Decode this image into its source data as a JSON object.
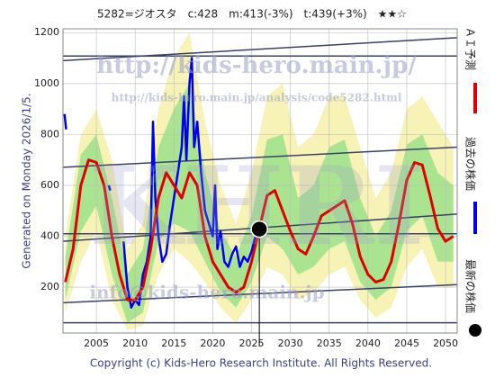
{
  "chart_data": {
    "type": "line",
    "title": "5282=ジオスタ　c:428　m:413(-3%)　t:439(+3%)　★★☆",
    "side_note": "Generated on Monday 2026/1/5.",
    "footer": "Copyright (c) Kids-Hero Research Institute. All Rights Reserved.",
    "watermarks": [
      "http://kids-hero.main.jp/",
      "http://kids-hero.main.jp/analysis/code5282.html",
      "KHRI",
      "info@kids-hero.main.jp"
    ],
    "xlim": [
      2000.7,
      2051.5
    ],
    "ylim": [
      20,
      1215
    ],
    "xticks": [
      2005,
      2010,
      2015,
      2020,
      2025,
      2030,
      2035,
      2040,
      2045,
      2050
    ],
    "yticks": [
      200,
      400,
      600,
      800,
      1000,
      1200
    ],
    "grid": true,
    "bands": [
      {
        "color": "#f6f0a8",
        "x": [
          2001,
          2003,
          2005,
          2007,
          2009,
          2011,
          2013,
          2015,
          2017,
          2019,
          2021,
          2023,
          2025,
          2027,
          2029,
          2031,
          2033,
          2035,
          2037,
          2039,
          2041,
          2043,
          2045,
          2047,
          2049,
          2051
        ],
        "lower": [
          100,
          300,
          420,
          150,
          30,
          50,
          250,
          350,
          300,
          220,
          120,
          60,
          150,
          280,
          250,
          150,
          180,
          250,
          280,
          150,
          80,
          120,
          280,
          350,
          200,
          200
        ],
        "upper": [
          400,
          800,
          900,
          700,
          350,
          450,
          900,
          1100,
          1200,
          850,
          600,
          450,
          650,
          950,
          1000,
          750,
          800,
          950,
          950,
          750,
          550,
          650,
          900,
          950,
          850,
          750
        ]
      },
      {
        "color": "#9ee28a",
        "x": [
          2001,
          2003,
          2005,
          2007,
          2009,
          2011,
          2013,
          2015,
          2017,
          2019,
          2021,
          2023,
          2025,
          2027,
          2029,
          2031,
          2033,
          2035,
          2037,
          2039,
          2041,
          2043,
          2045,
          2047,
          2049,
          2051
        ],
        "lower": [
          150,
          420,
          520,
          250,
          60,
          100,
          380,
          450,
          420,
          300,
          180,
          120,
          220,
          400,
          350,
          250,
          280,
          350,
          380,
          220,
          150,
          200,
          420,
          480,
          300,
          300
        ],
        "upper": [
          320,
          720,
          800,
          550,
          250,
          350,
          750,
          900,
          1000,
          650,
          420,
          320,
          480,
          780,
          800,
          550,
          600,
          750,
          780,
          550,
          400,
          500,
          760,
          800,
          650,
          600
        ]
      }
    ],
    "trendlines": [
      {
        "color": "#3a3f6e",
        "x": [
          2000.7,
          2051.5
        ],
        "y": [
          1090,
          1180
        ]
      },
      {
        "color": "#3a3f6e",
        "x": [
          2000.7,
          2051.5
        ],
        "y": [
          1108,
          1108
        ]
      },
      {
        "color": "#3a3f6e",
        "x": [
          2000.7,
          2051.5
        ],
        "y": [
          671,
          750
        ]
      },
      {
        "color": "#3a3f6e",
        "x": [
          2000.7,
          2051.5
        ],
        "y": [
          410,
          410
        ]
      },
      {
        "color": "#3a3f6e",
        "x": [
          2000.7,
          2051.5
        ],
        "y": [
          380,
          487
        ]
      },
      {
        "color": "#3a3f6e",
        "x": [
          2000.7,
          2051.5
        ],
        "y": [
          139,
          210
        ]
      },
      {
        "color": "#3a3f6e",
        "x": [
          2000.7,
          2051.5
        ],
        "y": [
          60,
          60
        ]
      }
    ],
    "series": [
      {
        "name": "ＡＩ予測",
        "color": "#e00000",
        "x": [
          2001,
          2002,
          2003,
          2004,
          2005,
          2006,
          2007,
          2008,
          2009,
          2010,
          2011,
          2012,
          2013,
          2014,
          2015,
          2016,
          2017,
          2018,
          2019,
          2020,
          2021,
          2022,
          2023,
          2024,
          2025,
          2026,
          2027,
          2028,
          2029,
          2030,
          2031,
          2032,
          2033,
          2034,
          2035,
          2036,
          2037,
          2038,
          2039,
          2040,
          2041,
          2042,
          2043,
          2044,
          2045,
          2046,
          2047,
          2048,
          2049,
          2050,
          2051
        ],
        "values": [
          220,
          350,
          600,
          700,
          690,
          600,
          400,
          250,
          150,
          150,
          200,
          350,
          550,
          650,
          600,
          550,
          650,
          600,
          400,
          300,
          250,
          200,
          180,
          200,
          300,
          430,
          560,
          580,
          500,
          420,
          350,
          330,
          400,
          480,
          500,
          520,
          540,
          450,
          320,
          250,
          220,
          230,
          300,
          450,
          620,
          690,
          680,
          560,
          430,
          380,
          400
        ]
      },
      {
        "name": "過去の株価",
        "color": "#0000ee",
        "x": [
          2000.9,
          2001.1,
          2003,
          2006.6,
          2006.8,
          2007.5,
          2008.5,
          2009,
          2009.5,
          2010,
          2010.5,
          2011,
          2011.5,
          2012,
          2012.3,
          2012.6,
          2013,
          2013.5,
          2014,
          2014.5,
          2015,
          2015.5,
          2016,
          2016.3,
          2016.6,
          2017,
          2017.3,
          2017.6,
          2018,
          2018.5,
          2019,
          2019.5,
          2020,
          2020.3,
          2020.6,
          2021,
          2021.5,
          2022,
          2022.5,
          2023,
          2023.5,
          2024,
          2024.5,
          2025,
          2025.5
        ],
        "values": [
          880,
          820,
          null,
          600,
          580,
          null,
          380,
          200,
          120,
          150,
          130,
          250,
          300,
          400,
          850,
          550,
          400,
          300,
          330,
          450,
          550,
          650,
          750,
          950,
          700,
          1000,
          1100,
          750,
          850,
          650,
          500,
          450,
          400,
          600,
          350,
          420,
          300,
          280,
          330,
          360,
          280,
          320,
          300,
          340,
          400
        ]
      }
    ],
    "latest": {
      "name": "最新の株価",
      "color": "#000000",
      "x": 2026,
      "value": 428
    }
  }
}
